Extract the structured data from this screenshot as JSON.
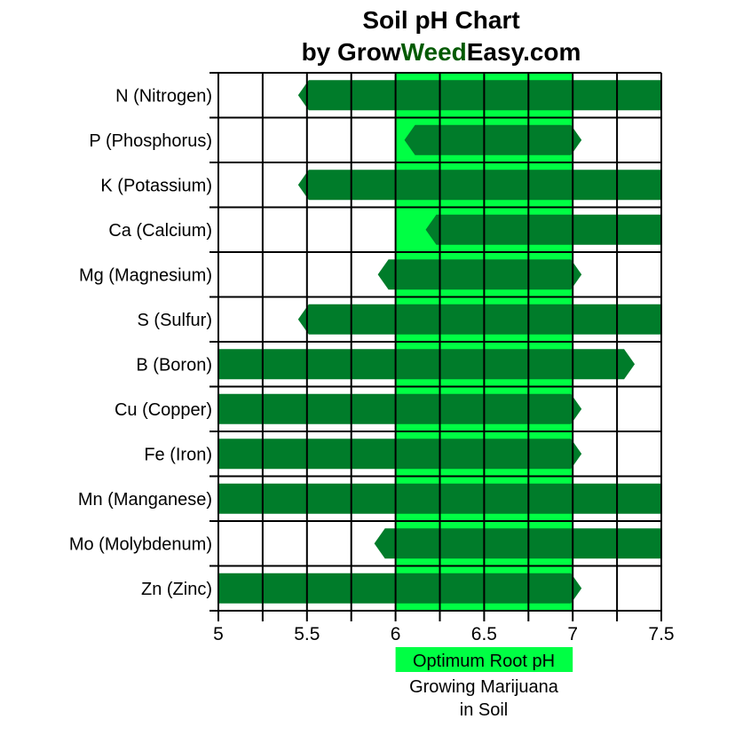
{
  "chart_data": {
    "type": "bar",
    "orientation": "horizontal-range",
    "title_line1": "Soil pH Chart",
    "title_line2_parts": [
      "by Grow",
      "Weed",
      "Easy.com"
    ],
    "xlim": [
      5,
      7.5
    ],
    "xticks": [
      "5",
      "5.5",
      "6",
      "6.5",
      "7",
      "7.5"
    ],
    "grid": true,
    "categories": [
      "N (Nitrogen)",
      "P (Phosphorus)",
      "K (Potassium)",
      "Ca (Calcium)",
      "Mg (Magnesium)",
      "S (Sulfur)",
      "B (Boron)",
      "Cu (Copper)",
      "Fe (Iron)",
      "Mn (Manganese)",
      "Mo (Molybdenum)",
      "Zn (Zinc)"
    ],
    "ranges": [
      [
        5.45,
        7.5
      ],
      [
        6.05,
        7.05
      ],
      [
        5.45,
        7.5
      ],
      [
        6.17,
        7.5
      ],
      [
        5.9,
        7.05
      ],
      [
        5.45,
        7.5
      ],
      [
        5,
        7.35
      ],
      [
        5,
        7.05
      ],
      [
        5,
        7.05
      ],
      [
        5,
        7.5
      ],
      [
        5.88,
        7.5
      ],
      [
        5,
        7.05
      ]
    ],
    "optimum_band": [
      6,
      7
    ],
    "band_label": "Optimum Root pH",
    "band_caption_line1": "Growing Marijuana",
    "band_caption_line2": "in Soil",
    "colors": {
      "bar": "#007c2a",
      "band": "#00ff44",
      "weed_text": "#005a00",
      "band_label_text": "#005a1a"
    }
  }
}
